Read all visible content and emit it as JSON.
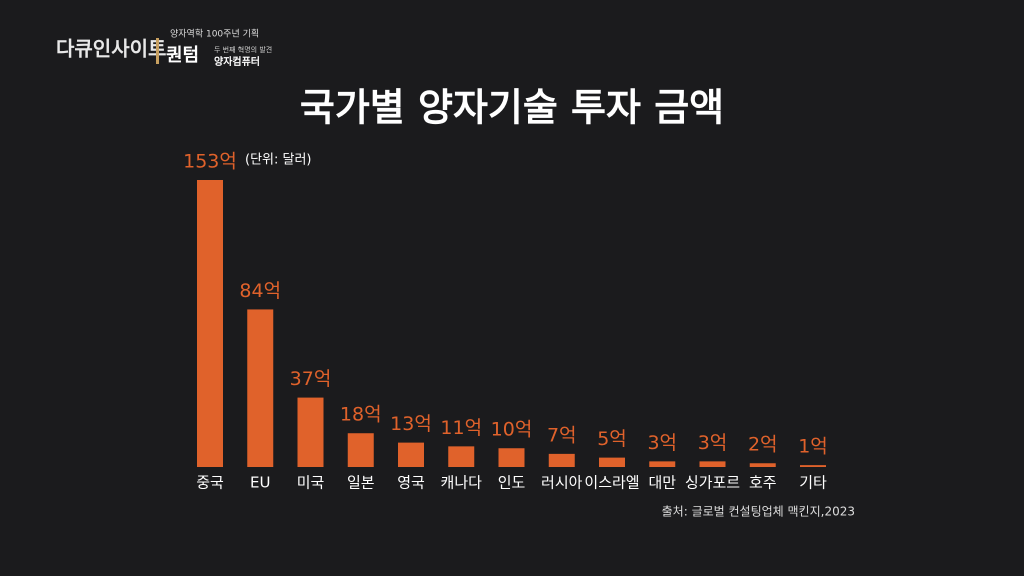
{
  "logo": {
    "brand": "다큐인사이트",
    "series_note": "양자역학 100주년 기획",
    "program": "퀀텀",
    "subtitle": "두 번째 혁명의 발견",
    "episode": "양자컴퓨터"
  },
  "chart_data": {
    "type": "bar",
    "title": "국가별 양자기술 투자 금액",
    "unit_note": "(단위: 달러)",
    "categories": [
      "중국",
      "EU",
      "미국",
      "일본",
      "영국",
      "캐나다",
      "인도",
      "러시아",
      "이스라엘",
      "대만",
      "싱가포르",
      "호주",
      "기타"
    ],
    "values": [
      153,
      84,
      37,
      18,
      13,
      11,
      10,
      7,
      5,
      3,
      3,
      2,
      1
    ],
    "value_labels": [
      "153억",
      "84억",
      "37억",
      "18억",
      "13억",
      "11억",
      "10억",
      "7억",
      "5억",
      "3억",
      "3억",
      "2억",
      "1억"
    ],
    "color": "#e0622b",
    "source": "출처: 글로벌 컨설팅업체 맥킨지,2023"
  }
}
